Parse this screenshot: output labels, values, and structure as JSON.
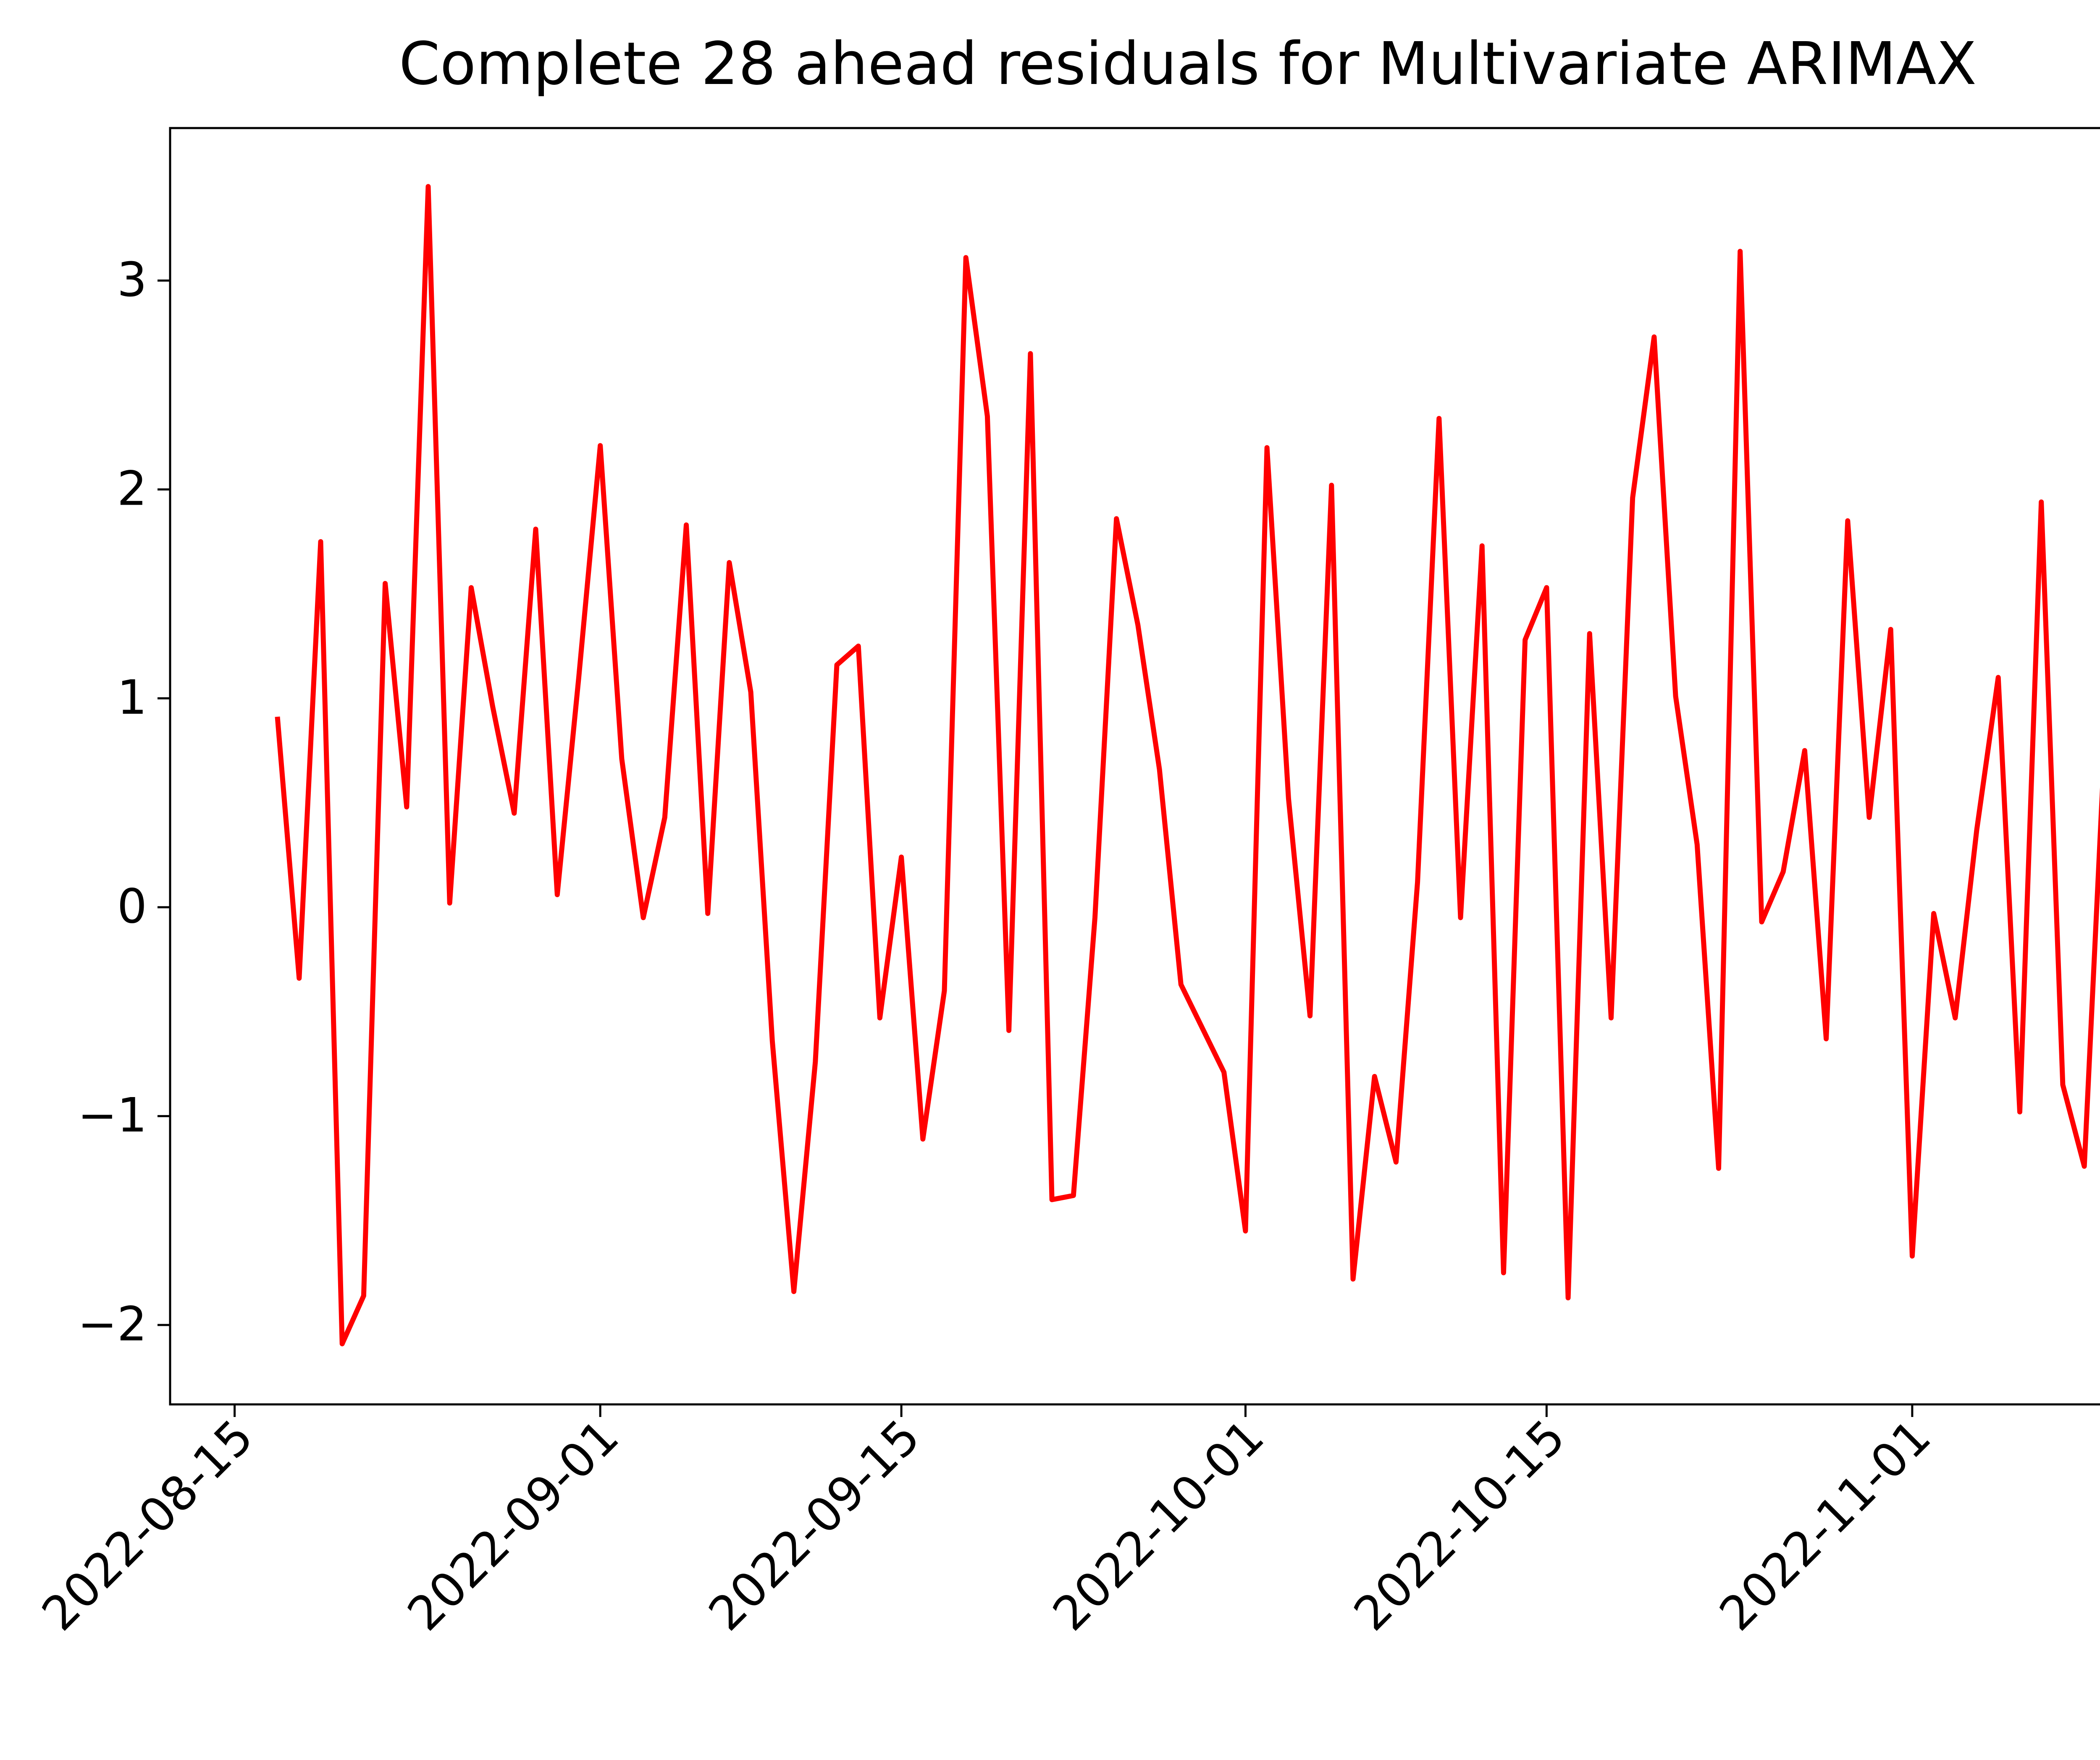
{
  "chart_data": {
    "type": "line",
    "title": "Complete 28 ahead residuals for Multivariate ARIMAX",
    "xlabel": "",
    "ylabel": "",
    "x_start": "2022-08-17",
    "x_step_days": 1,
    "xlim": [
      "2022-08-12",
      "2022-11-11"
    ],
    "ylim": [
      -2.38,
      3.73
    ],
    "grid": false,
    "line_color": "#ff0000",
    "x_ticks": [
      "2022-08-15",
      "2022-09-01",
      "2022-09-15",
      "2022-10-01",
      "2022-10-15",
      "2022-11-01"
    ],
    "y_ticks": [
      3,
      2,
      1,
      0,
      -1,
      -2
    ],
    "y_tick_labels": [
      "3",
      "2",
      "1",
      "0",
      "−1",
      "−2"
    ],
    "values": [
      0.9,
      -0.34,
      1.75,
      -2.09,
      -1.86,
      1.55,
      0.48,
      3.45,
      0.02,
      1.53,
      0.96,
      0.45,
      1.81,
      0.06,
      1.1,
      2.21,
      0.71,
      -0.05,
      0.43,
      1.83,
      -0.03,
      1.65,
      1.03,
      -0.64,
      -1.84,
      -0.74,
      1.16,
      1.25,
      -0.53,
      0.24,
      -1.11,
      -0.4,
      3.11,
      2.35,
      -0.59,
      2.65,
      -1.4,
      -1.38,
      -0.05,
      1.86,
      1.35,
      0.66,
      -0.37,
      -0.58,
      -0.79,
      -1.55,
      2.2,
      0.52,
      -0.52,
      2.02,
      -1.78,
      -0.81,
      -1.22,
      0.12,
      2.34,
      -0.05,
      1.73,
      -1.75,
      1.28,
      1.53,
      -1.87,
      1.31,
      -0.53,
      1.96,
      2.73,
      1.01,
      0.3,
      -1.25,
      3.14,
      -0.07,
      0.17,
      0.75,
      -0.63,
      1.85,
      0.43,
      1.33,
      -1.67,
      -0.03,
      -0.53,
      0.37,
      1.1,
      -0.98,
      1.94,
      -0.85,
      -1.24,
      0.9
    ]
  }
}
